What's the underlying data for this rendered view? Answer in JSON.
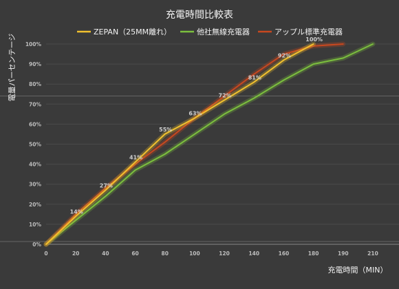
{
  "chart_data": {
    "type": "line",
    "title": "充電時間比較表",
    "xlabel": "充電時間（MIN）",
    "ylabel": "電量パーセンテージ",
    "x_ticks": [
      0,
      20,
      40,
      60,
      80,
      100,
      120,
      140,
      160,
      180,
      190,
      210
    ],
    "y_ticks": [
      "0%",
      "10%",
      "20%",
      "30%",
      "40%",
      "50%",
      "60%",
      "70%",
      "80%",
      "90%",
      "100%"
    ],
    "ylim": [
      0,
      100
    ],
    "grid": true,
    "legend_position": "top",
    "series": [
      {
        "name": "ZEPAN（25MM離れ）",
        "color": "#f2c12e",
        "x": [
          0,
          20,
          40,
          60,
          80,
          100,
          120,
          140,
          160,
          180
        ],
        "y": [
          0,
          14,
          27,
          41,
          55,
          63,
          72,
          81,
          92,
          100
        ]
      },
      {
        "name": "他社無線充電器",
        "color": "#7cc03e",
        "x": [
          0,
          20,
          40,
          60,
          80,
          100,
          120,
          140,
          160,
          180,
          190,
          210
        ],
        "y": [
          0,
          12,
          24,
          37,
          45,
          55,
          65,
          73,
          82,
          90,
          93,
          100
        ]
      },
      {
        "name": "アップル標準充電器",
        "color": "#c8481f",
        "x": [
          0,
          20,
          40,
          60,
          80,
          100,
          120,
          140,
          160,
          180,
          190
        ],
        "y": [
          0,
          15,
          28,
          40,
          51,
          63,
          74,
          85,
          95,
          99,
          100
        ]
      }
    ],
    "data_labels": [
      {
        "x": 20,
        "y": 14,
        "text": "14%"
      },
      {
        "x": 40,
        "y": 27,
        "text": "27%"
      },
      {
        "x": 60,
        "y": 41,
        "text": "41%"
      },
      {
        "x": 80,
        "y": 55,
        "text": "55%"
      },
      {
        "x": 100,
        "y": 63,
        "text": "63%"
      },
      {
        "x": 120,
        "y": 72,
        "text": "72%"
      },
      {
        "x": 140,
        "y": 81,
        "text": "81%"
      },
      {
        "x": 160,
        "y": 92,
        "text": "92%"
      },
      {
        "x": 180,
        "y": 100,
        "text": "100%"
      }
    ]
  }
}
